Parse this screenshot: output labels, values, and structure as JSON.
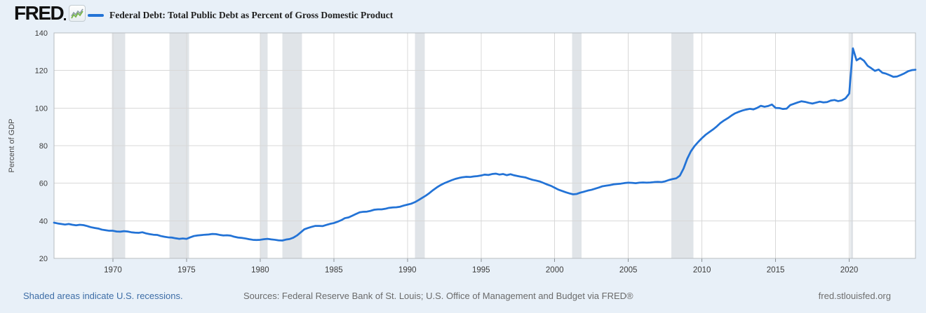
{
  "header": {
    "logo_text": "FRED",
    "legend_label": "Federal Debt: Total Public Debt as Percent of Gross Domestic Product"
  },
  "footer": {
    "recession_note": "Shaded areas indicate U.S. recessions.",
    "sources": "Sources: Federal Reserve Bank of St. Louis; U.S. Office of Management and Budget via FRED®",
    "site_url": "fred.stlouisfed.org"
  },
  "chart_data": {
    "type": "line",
    "title": "Federal Debt: Total Public Debt as Percent of Gross Domestic Product",
    "xlabel": "",
    "ylabel": "Percent of GDP",
    "xlim": [
      1966,
      2024.5
    ],
    "ylim": [
      20,
      140
    ],
    "y_ticks": [
      20,
      40,
      60,
      80,
      100,
      120,
      140
    ],
    "x_ticks": [
      1970,
      1975,
      1980,
      1985,
      1990,
      1995,
      2000,
      2005,
      2010,
      2015,
      2020
    ],
    "grid": true,
    "legend_position": "top-left",
    "series": [
      {
        "name": "Federal Debt: Total Public Debt as Percent of Gross Domestic Product",
        "units": "Percent of GDP",
        "frequency": "quarterly",
        "x_start": 1966.0,
        "x_step": 0.25,
        "values": [
          39.0,
          38.6,
          38.3,
          38.0,
          38.3,
          37.9,
          37.6,
          37.9,
          37.7,
          37.2,
          36.6,
          36.2,
          35.9,
          35.3,
          35.0,
          34.7,
          34.7,
          34.3,
          34.2,
          34.5,
          34.3,
          33.9,
          33.7,
          33.6,
          33.9,
          33.3,
          32.9,
          32.6,
          32.5,
          31.9,
          31.5,
          31.2,
          31.1,
          30.7,
          30.4,
          30.6,
          30.4,
          31.2,
          31.9,
          32.2,
          32.4,
          32.6,
          32.7,
          33.0,
          32.9,
          32.5,
          32.2,
          32.3,
          32.1,
          31.5,
          31.1,
          30.9,
          30.6,
          30.2,
          29.9,
          29.8,
          29.9,
          30.2,
          30.4,
          30.1,
          29.9,
          29.6,
          29.5,
          30.0,
          30.3,
          31.0,
          32.2,
          33.8,
          35.5,
          36.2,
          36.8,
          37.3,
          37.3,
          37.2,
          37.8,
          38.4,
          38.8,
          39.5,
          40.3,
          41.4,
          41.8,
          42.7,
          43.6,
          44.5,
          44.8,
          44.9,
          45.3,
          45.9,
          46.1,
          46.1,
          46.4,
          46.9,
          47.1,
          47.2,
          47.5,
          48.1,
          48.6,
          49.1,
          49.9,
          51.0,
          52.2,
          53.4,
          54.8,
          56.4,
          57.8,
          59.0,
          60.0,
          60.8,
          61.6,
          62.3,
          62.8,
          63.2,
          63.4,
          63.3,
          63.6,
          63.8,
          64.1,
          64.6,
          64.4,
          64.9,
          65.1,
          64.6,
          64.9,
          64.3,
          64.8,
          64.2,
          63.8,
          63.4,
          63.1,
          62.4,
          61.8,
          61.4,
          60.9,
          60.1,
          59.3,
          58.6,
          57.6,
          56.6,
          55.9,
          55.2,
          54.6,
          54.1,
          54.3,
          55.0,
          55.5,
          56.1,
          56.5,
          57.1,
          57.7,
          58.4,
          58.7,
          59.0,
          59.4,
          59.6,
          59.8,
          60.1,
          60.3,
          60.2,
          60.0,
          60.3,
          60.4,
          60.3,
          60.4,
          60.6,
          60.7,
          60.6,
          61.0,
          61.7,
          62.2,
          62.6,
          64.0,
          67.8,
          73.0,
          77.0,
          79.8,
          82.0,
          84.0,
          85.8,
          87.2,
          88.6,
          90.2,
          92.0,
          93.4,
          94.6,
          96.0,
          97.2,
          98.0,
          98.7,
          99.2,
          99.6,
          99.3,
          100.1,
          101.2,
          100.7,
          101.1,
          101.9,
          100.1,
          100.0,
          99.5,
          99.7,
          101.6,
          102.3,
          103.0,
          103.6,
          103.3,
          102.8,
          102.4,
          102.9,
          103.4,
          103.0,
          103.2,
          104.0,
          104.3,
          103.7,
          104.1,
          105.2,
          107.7,
          131.8,
          125.4,
          126.6,
          125.2,
          122.5,
          121.2,
          119.8,
          120.5,
          118.8,
          118.3,
          117.5,
          116.6,
          116.8,
          117.6,
          118.5,
          119.6,
          120.2,
          120.4
        ]
      }
    ],
    "recessions": [
      [
        1969.92,
        1970.83
      ],
      [
        1973.83,
        1975.17
      ],
      [
        1980.0,
        1980.5
      ],
      [
        1981.5,
        1982.83
      ],
      [
        1990.5,
        1991.17
      ],
      [
        2001.17,
        2001.83
      ],
      [
        2007.92,
        2009.42
      ],
      [
        2020.08,
        2020.25
      ]
    ],
    "colors": {
      "line": "#2373d6",
      "recession_band": "#e0e4e8",
      "grid": "#d8d8d8",
      "axis_border": "#b7bcc1",
      "tick_mark": "#8a8f94",
      "tick_label": "#3c3c3c",
      "axis_title": "#4a4a4a",
      "plot_bg": "#ffffff",
      "page_bg": "#e8f0f8",
      "logo_green": "#79b74a",
      "logo_gray": "#8d9ba5"
    }
  }
}
